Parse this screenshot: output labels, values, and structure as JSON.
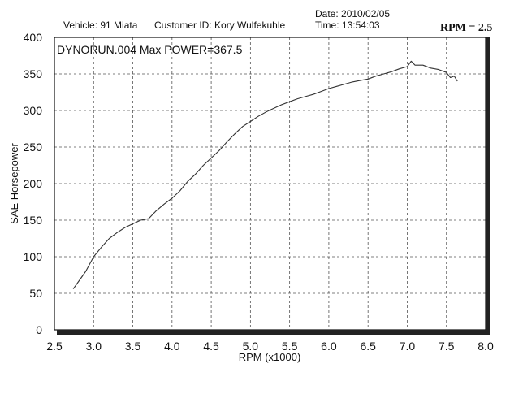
{
  "header": {
    "vehicle": "Vehicle: 91 Miata",
    "customer": "Customer ID: Kory Wulfekuhle",
    "date": "Date: 2010/02/05",
    "time": "Time: 13:54:03",
    "rpm_setting": "RPM = 2.5"
  },
  "chart_data": {
    "type": "line",
    "title": "DYNORUN.004  Max POWER=367.5",
    "xlabel": "RPM (x1000)",
    "ylabel": "SAE Horsepower",
    "xlim": [
      2.5,
      8.0
    ],
    "ylim": [
      0,
      400
    ],
    "xticks": [
      "2.5",
      "3.0",
      "3.5",
      "4.0",
      "4.5",
      "5.0",
      "5.5",
      "6.0",
      "6.5",
      "7.0",
      "7.5",
      "8.0"
    ],
    "yticks": [
      "0",
      "50",
      "100",
      "150",
      "200",
      "250",
      "300",
      "350",
      "400"
    ],
    "grid": true,
    "series": [
      {
        "x": [
          2.74,
          2.8,
          2.9,
          3.0,
          3.1,
          3.2,
          3.3,
          3.4,
          3.5,
          3.6,
          3.7,
          3.8,
          3.9,
          4.0,
          4.1,
          4.2,
          4.3,
          4.4,
          4.5,
          4.6,
          4.7,
          4.8,
          4.9,
          5.0,
          5.1,
          5.2,
          5.3,
          5.4,
          5.5,
          5.6,
          5.7,
          5.8,
          5.9,
          6.0,
          6.1,
          6.2,
          6.3,
          6.4,
          6.5,
          6.6,
          6.7,
          6.8,
          6.9,
          7.0,
          7.05,
          7.1,
          7.2,
          7.3,
          7.4,
          7.5,
          7.55,
          7.6,
          7.64
        ],
        "y": [
          56,
          65,
          80,
          100,
          113,
          125,
          133,
          140,
          145,
          150,
          152,
          163,
          172,
          180,
          190,
          203,
          213,
          225,
          235,
          245,
          257,
          268,
          278,
          285,
          292,
          298,
          303,
          308,
          312,
          316,
          319,
          322,
          326,
          330,
          333,
          336,
          339,
          341,
          343,
          347,
          350,
          353,
          357,
          360,
          367.5,
          362,
          362,
          358,
          356,
          352,
          345,
          347,
          340
        ]
      }
    ]
  }
}
